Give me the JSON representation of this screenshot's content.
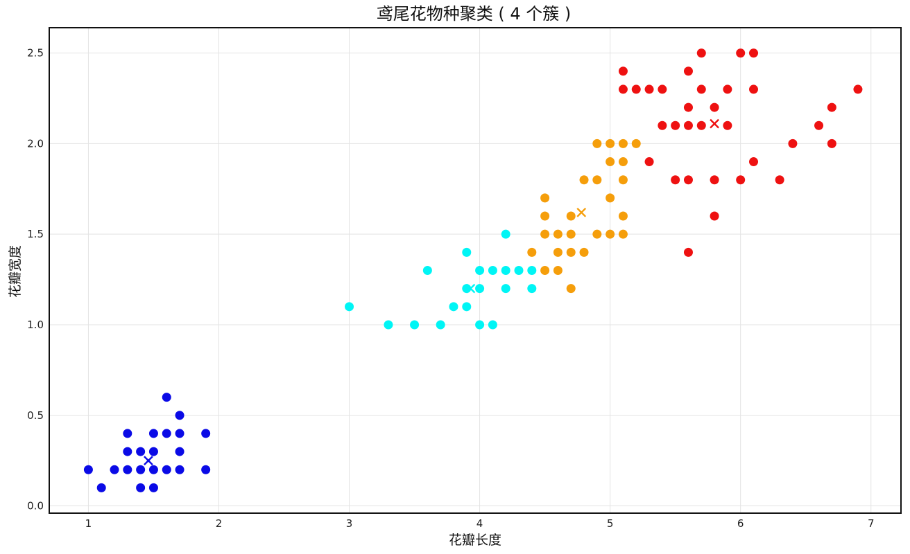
{
  "chart_data": {
    "type": "scatter",
    "title": "鸢尾花物种聚类 ( 4 个簇 )",
    "xlabel": "花瓣长度",
    "ylabel": "花瓣宽度",
    "xlim": [
      0.7,
      7.23
    ],
    "ylim": [
      -0.04,
      2.64
    ],
    "xticks": [
      1,
      2,
      3,
      4,
      5,
      6,
      7
    ],
    "yticks": [
      0.0,
      0.5,
      1.0,
      1.5,
      2.0,
      2.5
    ],
    "ytick_labels": [
      "0.0",
      "0.5",
      "1.0",
      "1.5",
      "2.0",
      "2.5"
    ],
    "grid": true,
    "legend": "none",
    "series": [
      {
        "color": "#0a0ae6",
        "points": [
          [
            1.0,
            0.2
          ],
          [
            1.1,
            0.1
          ],
          [
            1.2,
            0.2
          ],
          [
            1.3,
            0.2
          ],
          [
            1.3,
            0.3
          ],
          [
            1.3,
            0.4
          ],
          [
            1.4,
            0.1
          ],
          [
            1.4,
            0.2
          ],
          [
            1.4,
            0.3
          ],
          [
            1.5,
            0.1
          ],
          [
            1.5,
            0.2
          ],
          [
            1.5,
            0.3
          ],
          [
            1.5,
            0.4
          ],
          [
            1.6,
            0.2
          ],
          [
            1.6,
            0.4
          ],
          [
            1.6,
            0.6
          ],
          [
            1.7,
            0.2
          ],
          [
            1.7,
            0.3
          ],
          [
            1.7,
            0.4
          ],
          [
            1.7,
            0.5
          ],
          [
            1.9,
            0.2
          ],
          [
            1.9,
            0.4
          ]
        ],
        "centroid": [
          1.46,
          0.25
        ]
      },
      {
        "color": "#00f5f5",
        "points": [
          [
            3.0,
            1.1
          ],
          [
            3.3,
            1.0
          ],
          [
            3.5,
            1.0
          ],
          [
            3.6,
            1.3
          ],
          [
            3.7,
            1.0
          ],
          [
            3.8,
            1.1
          ],
          [
            3.9,
            1.1
          ],
          [
            3.9,
            1.2
          ],
          [
            3.9,
            1.4
          ],
          [
            4.0,
            1.0
          ],
          [
            4.0,
            1.2
          ],
          [
            4.0,
            1.3
          ],
          [
            4.1,
            1.0
          ],
          [
            4.1,
            1.3
          ],
          [
            4.2,
            1.2
          ],
          [
            4.2,
            1.3
          ],
          [
            4.2,
            1.5
          ],
          [
            4.3,
            1.3
          ],
          [
            4.4,
            1.2
          ],
          [
            4.4,
            1.3
          ]
        ],
        "centroid": [
          3.93,
          1.2
        ]
      },
      {
        "color": "#f59e0b",
        "points": [
          [
            4.4,
            1.4
          ],
          [
            4.5,
            1.3
          ],
          [
            4.5,
            1.5
          ],
          [
            4.5,
            1.6
          ],
          [
            4.5,
            1.7
          ],
          [
            4.6,
            1.3
          ],
          [
            4.6,
            1.4
          ],
          [
            4.6,
            1.5
          ],
          [
            4.7,
            1.2
          ],
          [
            4.7,
            1.4
          ],
          [
            4.7,
            1.5
          ],
          [
            4.7,
            1.6
          ],
          [
            4.8,
            1.4
          ],
          [
            4.8,
            1.8
          ],
          [
            4.9,
            1.5
          ],
          [
            4.9,
            1.8
          ],
          [
            4.9,
            2.0
          ],
          [
            5.0,
            1.5
          ],
          [
            5.0,
            1.7
          ],
          [
            5.0,
            1.9
          ],
          [
            5.0,
            2.0
          ],
          [
            5.1,
            1.5
          ],
          [
            5.1,
            1.6
          ],
          [
            5.1,
            1.8
          ],
          [
            5.1,
            1.9
          ],
          [
            5.1,
            2.0
          ],
          [
            5.2,
            2.0
          ]
        ],
        "centroid": [
          4.78,
          1.62
        ]
      },
      {
        "color": "#ee1111",
        "points": [
          [
            5.1,
            2.3
          ],
          [
            5.1,
            2.4
          ],
          [
            5.2,
            2.3
          ],
          [
            5.3,
            1.9
          ],
          [
            5.3,
            2.3
          ],
          [
            5.4,
            2.1
          ],
          [
            5.4,
            2.3
          ],
          [
            5.5,
            1.8
          ],
          [
            5.5,
            2.1
          ],
          [
            5.6,
            1.4
          ],
          [
            5.6,
            1.8
          ],
          [
            5.6,
            2.1
          ],
          [
            5.6,
            2.2
          ],
          [
            5.6,
            2.4
          ],
          [
            5.7,
            2.1
          ],
          [
            5.7,
            2.3
          ],
          [
            5.7,
            2.5
          ],
          [
            5.8,
            1.6
          ],
          [
            5.8,
            1.8
          ],
          [
            5.8,
            2.2
          ],
          [
            5.9,
            2.1
          ],
          [
            5.9,
            2.3
          ],
          [
            6.0,
            1.8
          ],
          [
            6.0,
            2.5
          ],
          [
            6.1,
            1.9
          ],
          [
            6.1,
            2.3
          ],
          [
            6.1,
            2.5
          ],
          [
            6.3,
            1.8
          ],
          [
            6.4,
            2.0
          ],
          [
            6.6,
            2.1
          ],
          [
            6.7,
            2.0
          ],
          [
            6.7,
            2.2
          ],
          [
            6.9,
            2.3
          ]
        ],
        "centroid": [
          5.8,
          2.11
        ]
      }
    ]
  }
}
